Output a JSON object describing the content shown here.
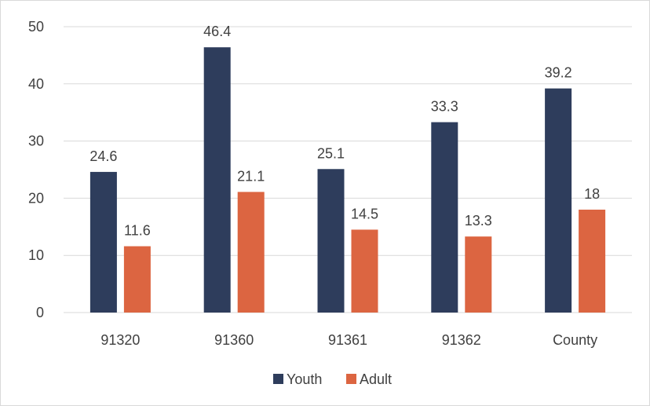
{
  "chart_data": {
    "type": "bar",
    "categories": [
      "91320",
      "91360",
      "91361",
      "91362",
      "County"
    ],
    "series": [
      {
        "name": "Youth",
        "values": [
          24.6,
          46.4,
          25.1,
          33.3,
          39.2
        ],
        "labels": [
          "24.6",
          "46.4",
          "25.1",
          "33.3",
          "39.2"
        ],
        "color": "#2e3d5c"
      },
      {
        "name": "Adult",
        "values": [
          11.6,
          21.1,
          14.5,
          13.3,
          18
        ],
        "labels": [
          "11.6",
          "21.1",
          "14.5",
          "13.3",
          "18"
        ],
        "color": "#dc6541"
      }
    ],
    "ylim": [
      0,
      50
    ],
    "yticks": [
      "0",
      "10",
      "20",
      "30",
      "40",
      "50"
    ],
    "grid": true,
    "legend": "bottom",
    "gridline_color": "#d9d9d9"
  }
}
